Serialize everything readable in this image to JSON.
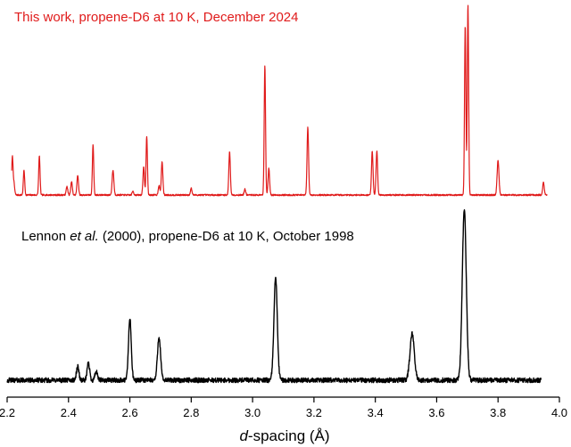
{
  "chart_data": {
    "type": "line",
    "xlabel_italic": "d",
    "xlabel_rest": "-spacing (Å)",
    "ylabel": "",
    "xlim": [
      2.2,
      4.0
    ],
    "ylim": [
      0,
      1
    ],
    "grid": false,
    "legend": "none",
    "x_ticks": [
      "2.2",
      "2.4",
      "2.6",
      "2.8",
      "3.0",
      "3.2",
      "3.4",
      "3.6",
      "3.8",
      "4.0"
    ],
    "x_tick_values": [
      2.2,
      2.4,
      2.6,
      2.8,
      3.0,
      3.2,
      3.4,
      3.6,
      3.8,
      4.0
    ],
    "series": [
      {
        "label_pre": "This work, propene-D6 at 10 K, December 2024",
        "label_italic": "",
        "label_post": "",
        "color": "#e01b1b",
        "x_range": [
          2.215,
          3.96
        ],
        "baseline": 0.0,
        "noise": 0.004,
        "peaks": [
          {
            "x": 2.217,
            "height": 0.195,
            "width": 0.0022
          },
          {
            "x": 2.222,
            "height": 0.06,
            "width": 0.0025
          },
          {
            "x": 2.255,
            "height": 0.13,
            "width": 0.0022
          },
          {
            "x": 2.305,
            "height": 0.205,
            "width": 0.0022
          },
          {
            "x": 2.395,
            "height": 0.045,
            "width": 0.0025
          },
          {
            "x": 2.41,
            "height": 0.07,
            "width": 0.0025
          },
          {
            "x": 2.43,
            "height": 0.105,
            "width": 0.0025
          },
          {
            "x": 2.48,
            "height": 0.265,
            "width": 0.0022
          },
          {
            "x": 2.545,
            "height": 0.13,
            "width": 0.0028
          },
          {
            "x": 2.61,
            "height": 0.02,
            "width": 0.0025
          },
          {
            "x": 2.645,
            "height": 0.145,
            "width": 0.0025
          },
          {
            "x": 2.655,
            "height": 0.31,
            "width": 0.0022
          },
          {
            "x": 2.695,
            "height": 0.05,
            "width": 0.0025
          },
          {
            "x": 2.705,
            "height": 0.175,
            "width": 0.0025
          },
          {
            "x": 2.8,
            "height": 0.035,
            "width": 0.0025
          },
          {
            "x": 2.925,
            "height": 0.225,
            "width": 0.0025
          },
          {
            "x": 2.975,
            "height": 0.03,
            "width": 0.0025
          },
          {
            "x": 3.04,
            "height": 0.68,
            "width": 0.0022
          },
          {
            "x": 3.053,
            "height": 0.14,
            "width": 0.0025
          },
          {
            "x": 3.18,
            "height": 0.355,
            "width": 0.0025
          },
          {
            "x": 3.39,
            "height": 0.23,
            "width": 0.0025
          },
          {
            "x": 3.405,
            "height": 0.23,
            "width": 0.0025
          },
          {
            "x": 3.693,
            "height": 0.89,
            "width": 0.0022
          },
          {
            "x": 3.702,
            "height": 1.0,
            "width": 0.0022
          },
          {
            "x": 3.8,
            "height": 0.18,
            "width": 0.003
          },
          {
            "x": 3.948,
            "height": 0.065,
            "width": 0.0025
          }
        ]
      },
      {
        "label_pre": "Lennon ",
        "label_italic": "et al.",
        "label_post": " (2000), propene-D6 at 10 K, October 1998",
        "color": "#000000",
        "x_range": [
          2.2,
          3.94
        ],
        "baseline": 0.0,
        "noise": 0.014,
        "peaks": [
          {
            "x": 2.43,
            "height": 0.08,
            "width": 0.004
          },
          {
            "x": 2.465,
            "height": 0.1,
            "width": 0.004
          },
          {
            "x": 2.49,
            "height": 0.05,
            "width": 0.004
          },
          {
            "x": 2.6,
            "height": 0.36,
            "width": 0.0045
          },
          {
            "x": 2.695,
            "height": 0.255,
            "width": 0.005
          },
          {
            "x": 3.075,
            "height": 0.6,
            "width": 0.0055
          },
          {
            "x": 3.52,
            "height": 0.27,
            "width": 0.007
          },
          {
            "x": 3.69,
            "height": 1.0,
            "width": 0.0065
          }
        ]
      }
    ]
  }
}
